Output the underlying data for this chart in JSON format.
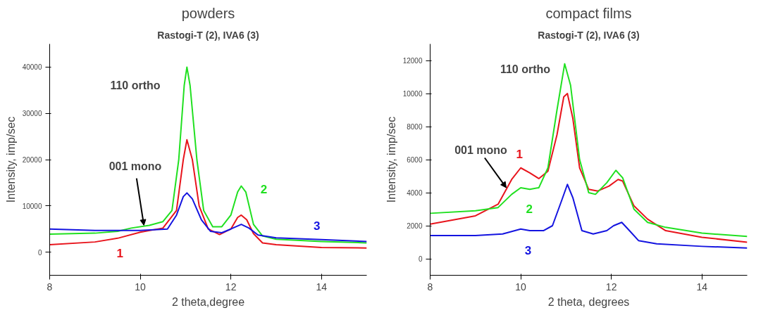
{
  "chart_data": [
    {
      "type": "line",
      "title": "powders",
      "subtitle": "Rastogi-T (2), IVA6 (3)",
      "xlabel": "2 theta,degree",
      "ylabel": "Intensity, imp/sec",
      "xlim": [
        8,
        15
      ],
      "ylim": [
        -5000,
        45000
      ],
      "xticks": [
        8,
        10,
        12,
        14
      ],
      "yticks": [
        0,
        10000,
        20000,
        30000,
        40000
      ],
      "grid": false,
      "marker": "none",
      "line_style": "solid",
      "series": [
        {
          "name": "1",
          "color": "#e8141c",
          "x": [
            8,
            9,
            9.5,
            10,
            10.5,
            10.8,
            10.95,
            11.03,
            11.15,
            11.3,
            11.5,
            11.75,
            12.0,
            12.15,
            12.23,
            12.35,
            12.5,
            12.7,
            13,
            14,
            15
          ],
          "values": [
            1600,
            2200,
            3000,
            4300,
            5200,
            9000,
            20000,
            24300,
            20000,
            10000,
            5000,
            3800,
            5000,
            7500,
            8000,
            7000,
            4000,
            2000,
            1600,
            1000,
            900
          ]
        },
        {
          "name": "2",
          "color": "#20e020",
          "x": [
            8,
            9,
            9.5,
            9.8,
            10.2,
            10.5,
            10.7,
            10.85,
            10.97,
            11.03,
            11.1,
            11.25,
            11.4,
            11.6,
            11.8,
            12.0,
            12.15,
            12.23,
            12.33,
            12.5,
            12.7,
            13,
            14,
            15
          ],
          "values": [
            3900,
            4100,
            4500,
            5200,
            5800,
            6600,
            9000,
            20000,
            36000,
            40000,
            36000,
            20000,
            9000,
            5500,
            5500,
            8000,
            13000,
            14300,
            13000,
            6000,
            3500,
            2800,
            2300,
            2000
          ]
        },
        {
          "name": "3",
          "color": "#1414e0",
          "x": [
            8,
            9,
            10,
            10.6,
            10.8,
            10.95,
            11.03,
            11.15,
            11.35,
            11.55,
            11.8,
            12.0,
            12.23,
            12.4,
            12.6,
            13,
            14,
            15
          ],
          "values": [
            5000,
            4700,
            4700,
            5000,
            8000,
            12000,
            12800,
            11500,
            7000,
            4500,
            4200,
            5000,
            6000,
            5200,
            3700,
            3100,
            2700,
            2300
          ]
        }
      ],
      "annotations": [
        {
          "text": "001 mono",
          "x": 10.08,
          "y": 5800
        },
        "110 ortho"
      ]
    },
    {
      "type": "line",
      "title": "compact films",
      "subtitle": "Rastogi-T (2), IVA6 (3)",
      "xlabel": "2 theta, degrees",
      "ylabel": "Intensity, imp/sec",
      "xlim": [
        8,
        15
      ],
      "ylim": [
        -1000,
        13000
      ],
      "xticks": [
        8,
        10,
        12,
        14
      ],
      "yticks": [
        0,
        2000,
        4000,
        6000,
        8000,
        10000,
        12000
      ],
      "grid": false,
      "marker": "none",
      "line_style": "solid",
      "series": [
        {
          "name": "1",
          "color": "#e8141c",
          "x": [
            8,
            9,
            9.5,
            9.8,
            10.0,
            10.2,
            10.4,
            10.6,
            10.8,
            10.95,
            11.03,
            11.15,
            11.3,
            11.5,
            11.7,
            11.95,
            12.15,
            12.25,
            12.5,
            12.8,
            13.2,
            14,
            15
          ],
          "values": [
            2100,
            2600,
            3300,
            4800,
            5500,
            5200,
            4850,
            5300,
            7500,
            9800,
            10000,
            8500,
            5500,
            4200,
            4100,
            4400,
            4800,
            4700,
            3200,
            2400,
            1700,
            1300,
            1000
          ]
        },
        {
          "name": "2",
          "color": "#20e020",
          "x": [
            8,
            9,
            9.5,
            9.8,
            10.0,
            10.2,
            10.4,
            10.6,
            10.8,
            10.97,
            11.1,
            11.3,
            11.5,
            11.65,
            11.9,
            12.1,
            12.25,
            12.5,
            12.8,
            13.2,
            14,
            15
          ],
          "values": [
            2750,
            2900,
            3100,
            3900,
            4300,
            4200,
            4300,
            5500,
            9000,
            11800,
            10500,
            6000,
            4000,
            3900,
            4600,
            5350,
            4900,
            3000,
            2200,
            1900,
            1550,
            1350
          ]
        },
        {
          "name": "3",
          "color": "#1414e0",
          "x": [
            8,
            9,
            9.6,
            10.0,
            10.2,
            10.5,
            10.7,
            10.9,
            11.03,
            11.15,
            11.35,
            11.6,
            11.9,
            12.05,
            12.23,
            12.4,
            12.6,
            13,
            14,
            15
          ],
          "values": [
            1400,
            1400,
            1500,
            1800,
            1700,
            1700,
            2000,
            3500,
            4500,
            3700,
            1700,
            1500,
            1700,
            2000,
            2200,
            1700,
            1100,
            900,
            750,
            650
          ]
        }
      ],
      "annotations": [
        {
          "text": "001 mono",
          "x": 9.68,
          "y": 4300
        },
        "110 ortho"
      ]
    }
  ]
}
